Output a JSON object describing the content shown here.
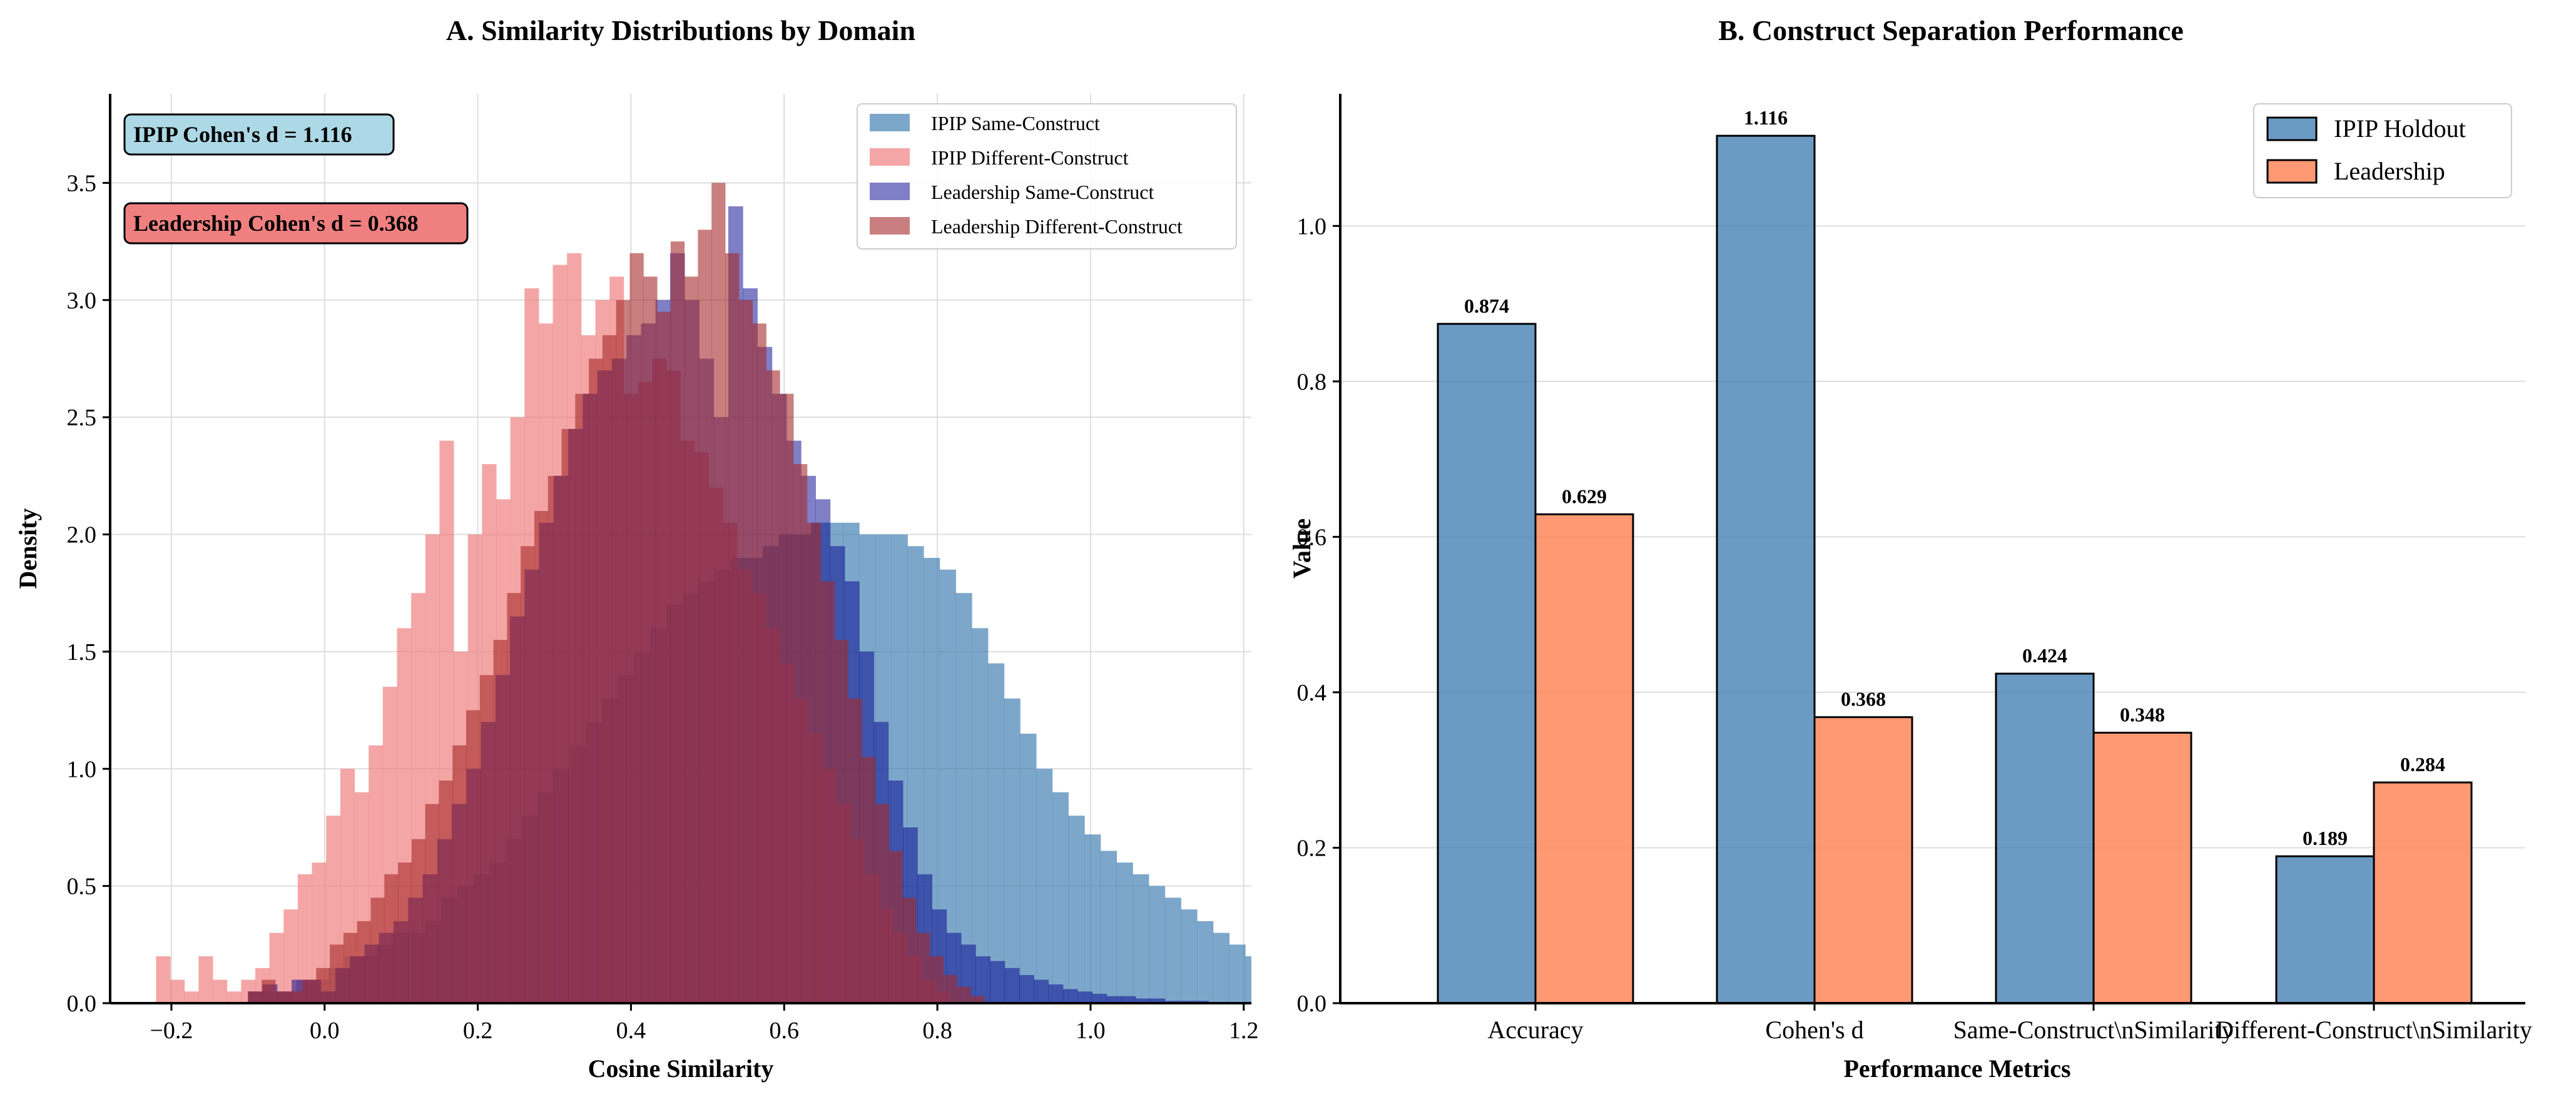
{
  "chart_data": [
    {
      "type": "histogram",
      "title": "A. Similarity Distributions by Domain",
      "xlabel": "Cosine Similarity",
      "ylabel": "Density",
      "xlim": [
        -0.28,
        1.21
      ],
      "ylim": [
        0,
        3.88
      ],
      "xticks": [
        "−0.2",
        "0.0",
        "0.2",
        "0.4",
        "0.6",
        "0.8",
        "1.0",
        "1.2"
      ],
      "yticks": [
        "0.0",
        "0.5",
        "1.0",
        "1.5",
        "2.0",
        "2.5",
        "3.0",
        "3.5"
      ],
      "grid": true,
      "legend_position": "top-right",
      "annotations": [
        {
          "text": "IPIP Cohen's d = 1.116",
          "color": "#add8e6"
        },
        {
          "text": "Leadership Cohen's d = 0.368",
          "color": "#f08080"
        }
      ],
      "series": [
        {
          "name": "IPIP Same-Construct",
          "color": "#4682b4",
          "opacity": 0.7,
          "bin_start": -0.1,
          "bin_width": 0.021,
          "values": [
            0.05,
            0.05,
            0.05,
            0.1,
            0.1,
            0.15,
            0.2,
            0.2,
            0.25,
            0.3,
            0.3,
            0.35,
            0.45,
            0.5,
            0.55,
            0.6,
            0.7,
            0.8,
            0.9,
            1.0,
            1.1,
            1.2,
            1.3,
            1.4,
            1.5,
            1.6,
            1.7,
            1.75,
            1.8,
            1.85,
            1.9,
            1.9,
            1.95,
            2.0,
            2.0,
            2.05,
            2.05,
            2.05,
            2.0,
            2.0,
            2.0,
            1.95,
            1.9,
            1.85,
            1.75,
            1.6,
            1.45,
            1.3,
            1.15,
            1.0,
            0.9,
            0.8,
            0.72,
            0.65,
            0.6,
            0.55,
            0.5,
            0.45,
            0.4,
            0.35,
            0.3,
            0.25,
            0.2,
            0.15,
            0.12,
            0.1,
            0.08,
            0.06,
            0.05,
            0.04,
            0.03,
            0.02,
            0.02,
            0.01,
            0.01,
            0.01,
            0.01,
            0,
            0,
            0.01
          ]
        },
        {
          "name": "IPIP Different-Construct",
          "color": "#f08080",
          "opacity": 0.7,
          "bin_start": -0.22,
          "bin_width": 0.0185,
          "values": [
            0.2,
            0.1,
            0.05,
            0.2,
            0.1,
            0.05,
            0.1,
            0.15,
            0.3,
            0.4,
            0.55,
            0.6,
            0.8,
            1.0,
            0.9,
            1.1,
            1.35,
            1.6,
            1.75,
            2.0,
            2.4,
            1.5,
            2.0,
            2.3,
            2.15,
            2.5,
            3.05,
            2.9,
            3.15,
            3.2,
            2.85,
            3.0,
            3.1,
            2.6,
            2.65,
            2.75,
            2.7,
            2.4,
            2.35,
            2.2,
            2.05,
            1.85,
            1.75,
            1.6,
            1.45,
            1.3,
            1.15,
            1.0,
            0.85,
            0.7,
            0.55,
            0.4,
            0.3,
            0.2,
            0.1,
            0.05
          ]
        },
        {
          "name": "Leadership Same-Construct",
          "color": "#00008b",
          "opacity": 0.5,
          "bin_start": -0.1,
          "bin_width": 0.019,
          "values": [
            0.05,
            0.08,
            0.05,
            0.1,
            0.1,
            0.05,
            0.15,
            0.2,
            0.25,
            0.3,
            0.35,
            0.45,
            0.55,
            0.7,
            0.85,
            1.0,
            1.2,
            1.4,
            1.65,
            1.85,
            2.05,
            2.25,
            2.45,
            2.6,
            2.7,
            2.75,
            2.85,
            2.9,
            3.0,
            3.2,
            3.0,
            2.75,
            2.5,
            3.4,
            3.05,
            2.8,
            2.6,
            2.4,
            2.25,
            2.15,
            1.95,
            1.8,
            1.5,
            1.2,
            0.95,
            0.75,
            0.55,
            0.4,
            0.3,
            0.25,
            0.2,
            0.18,
            0.15,
            0.12,
            0.1,
            0.08,
            0.06,
            0.05,
            0.04,
            0.03,
            0.03,
            0.02,
            0.02,
            0.01,
            0.01,
            0.01
          ]
        },
        {
          "name": "Leadership Different-Construct",
          "color": "#a52a2a",
          "opacity": 0.6,
          "bin_start": -0.1,
          "bin_width": 0.0178,
          "values": [
            0.05,
            0.1,
            0.05,
            0.05,
            0.1,
            0.15,
            0.25,
            0.3,
            0.35,
            0.45,
            0.55,
            0.6,
            0.7,
            0.85,
            0.95,
            1.1,
            1.25,
            1.4,
            1.55,
            1.75,
            1.95,
            2.1,
            2.25,
            2.45,
            2.6,
            2.75,
            2.85,
            3.0,
            3.2,
            3.1,
            2.95,
            3.25,
            3.1,
            3.3,
            3.5,
            3.2,
            3.0,
            2.9,
            2.7,
            2.6,
            2.3,
            2.05,
            1.8,
            1.55,
            1.3,
            1.05,
            0.85,
            0.65,
            0.45,
            0.3,
            0.2,
            0.12,
            0.07,
            0.03
          ]
        }
      ]
    },
    {
      "type": "bar",
      "title": "B. Construct Separation Performance",
      "xlabel": "Performance Metrics",
      "ylabel": "Value",
      "categories": [
        "Accuracy",
        "Cohen's d",
        "Same-Construct\\nSimilarity",
        "Different-Construct\\nSimilarity"
      ],
      "ylim": [
        0,
        1.17
      ],
      "yticks": [
        "0.0",
        "0.2",
        "0.4",
        "0.6",
        "0.8",
        "1.0"
      ],
      "grid": true,
      "legend_position": "top-right",
      "series": [
        {
          "name": "IPIP Holdout",
          "color": "#4682b4",
          "values": [
            0.874,
            1.116,
            0.424,
            0.189
          ],
          "labels": [
            "0.874",
            "1.116",
            "0.424",
            "0.189"
          ]
        },
        {
          "name": "Leadership",
          "color": "#ff7f50",
          "values": [
            0.629,
            0.368,
            0.348,
            0.284
          ],
          "labels": [
            "0.629",
            "0.368",
            "0.348",
            "0.284"
          ]
        }
      ]
    }
  ]
}
